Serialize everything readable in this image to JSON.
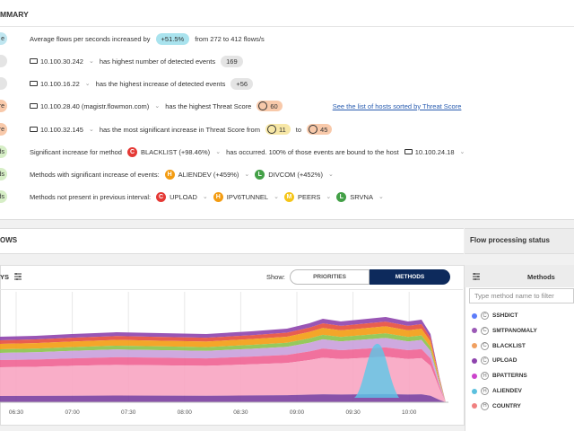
{
  "summary": {
    "title": "MMARY",
    "rows": [
      {
        "tag": "e",
        "tag_color": "#bfe6f0",
        "items": [
          {
            "kind": "text",
            "text": "Average flows per seconds increased by"
          },
          {
            "kind": "badge",
            "text": "+51.5%",
            "color": "#a9e3ee"
          },
          {
            "kind": "text",
            "text": "from 272 to 412 flows/s"
          }
        ]
      },
      {
        "tag_color": "#e4e4e4",
        "items": [
          {
            "kind": "host",
            "text": "10.100.30.242"
          },
          {
            "kind": "text",
            "text": "has highest number of detected events"
          },
          {
            "kind": "badge",
            "text": "169",
            "color": "#e4e4e4"
          }
        ]
      },
      {
        "tag_color": "#e4e4e4",
        "items": [
          {
            "kind": "host",
            "text": "10.100.16.22"
          },
          {
            "kind": "text",
            "text": "has the highest increase of detected events"
          },
          {
            "kind": "badge",
            "text": "+56",
            "color": "#e4e4e4"
          }
        ]
      },
      {
        "tag": "Score",
        "tag_color": "#f8c9aa",
        "items": [
          {
            "kind": "host",
            "text": "10.100.28.40 (magistr.flowmon.com)"
          },
          {
            "kind": "text",
            "text": "has the highest Threat Score"
          },
          {
            "kind": "score",
            "text": "60",
            "color": "#f8c9aa"
          },
          {
            "kind": "link",
            "text": "See the list of hosts sorted by Threat Score"
          }
        ]
      },
      {
        "tag": "Score",
        "tag_color": "#f8c9aa",
        "items": [
          {
            "kind": "host",
            "text": "10.100.32.145"
          },
          {
            "kind": "text",
            "text": "has the most significant increase in Threat Score from"
          },
          {
            "kind": "score",
            "text": "11",
            "color": "#f7e7a6"
          },
          {
            "kind": "text",
            "text": "to"
          },
          {
            "kind": "score",
            "text": "45",
            "color": "#f8c9aa"
          }
        ]
      },
      {
        "tag": "ds",
        "tag_color": "#d6eec6",
        "items": [
          {
            "kind": "text",
            "text": "Significant increase for method"
          },
          {
            "kind": "method",
            "letter": "C",
            "text": "BLACKLIST (+98.46%)",
            "color": "#e53935"
          },
          {
            "kind": "text",
            "text": "has occurred. 100% of those events are bound to the host"
          },
          {
            "kind": "host",
            "text": "10.100.24.18"
          }
        ]
      },
      {
        "tag": "ds",
        "tag_color": "#d6eec6",
        "items": [
          {
            "kind": "text",
            "text": "Methods with significant increase of events:"
          },
          {
            "kind": "method",
            "letter": "H",
            "text": "ALIENDEV (+459%)",
            "color": "#f39c12"
          },
          {
            "kind": "method",
            "letter": "L",
            "text": "DIVCOM (+452%)",
            "color": "#43a047"
          }
        ]
      },
      {
        "tag": "ds",
        "tag_color": "#d6eec6",
        "items": [
          {
            "kind": "text",
            "text": "Methods not present in previous interval:"
          },
          {
            "kind": "method",
            "letter": "C",
            "text": "UPLOAD",
            "color": "#e53935"
          },
          {
            "kind": "method",
            "letter": "H",
            "text": "IPV6TUNNEL",
            "color": "#f39c12"
          },
          {
            "kind": "method",
            "letter": "M",
            "text": "PEERS",
            "color": "#f5c518"
          },
          {
            "kind": "method",
            "letter": "L",
            "text": "SRVNA",
            "color": "#43a047"
          }
        ]
      }
    ]
  },
  "section": {
    "title": "OWS",
    "side_title": "Flow processing status"
  },
  "chart": {
    "title": "YS",
    "show_label": "Show:",
    "toggle": [
      "PRIORITIES",
      "METHODS"
    ],
    "x_labels": [
      "06:30",
      "07:00",
      "07:30",
      "08:00",
      "08:30",
      "09:00",
      "09:30",
      "10:00"
    ]
  },
  "methods_panel": {
    "title": "Methods",
    "placeholder": "Type method name to filter",
    "items": [
      {
        "letter": "C",
        "name": "SSHDICT",
        "color": "#5c7cfa"
      },
      {
        "letter": "C",
        "name": "SMTPANOMALY",
        "color": "#9b59b6"
      },
      {
        "letter": "C",
        "name": "BLACKLIST",
        "color": "#f0a060"
      },
      {
        "letter": "C",
        "name": "UPLOAD",
        "color": "#8e44ad"
      },
      {
        "letter": "H",
        "name": "BPATTERNS",
        "color": "#cc44cc"
      },
      {
        "letter": "H",
        "name": "ALIENDEV",
        "color": "#5bc0de"
      },
      {
        "letter": "H",
        "name": "COUNTRY",
        "color": "#f08080"
      }
    ]
  }
}
